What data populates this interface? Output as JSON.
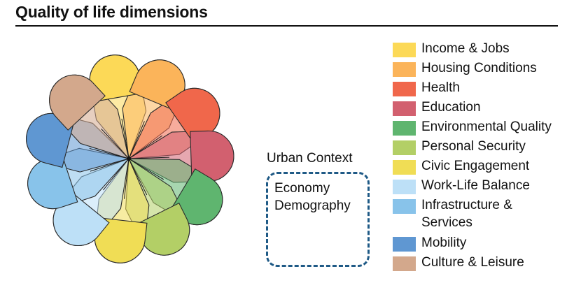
{
  "title": "Quality of life dimensions",
  "dimensions": [
    {
      "label": "Income & Jobs",
      "color": "#fcd957"
    },
    {
      "label": "Housing Conditions",
      "color": "#fbb45a"
    },
    {
      "label": "Health",
      "color": "#f0674b"
    },
    {
      "label": "Education",
      "color": "#d2606f"
    },
    {
      "label": "Environmental Quality",
      "color": "#5fb56f"
    },
    {
      "label": "Personal Security",
      "color": "#b3cf66"
    },
    {
      "label": "Civic Engagement",
      "color": "#f0dd55"
    },
    {
      "label": "Work-Life Balance",
      "color": "#bde0f7"
    },
    {
      "label": "Infrastructure &\nServices",
      "color": "#88c3ea"
    },
    {
      "label": "Mobility",
      "color": "#5f97d2"
    },
    {
      "label": "Culture & Leisure",
      "color": "#d3a88c"
    }
  ],
  "context": {
    "label": "Urban Context",
    "items": [
      "Economy",
      "Demography"
    ]
  }
}
